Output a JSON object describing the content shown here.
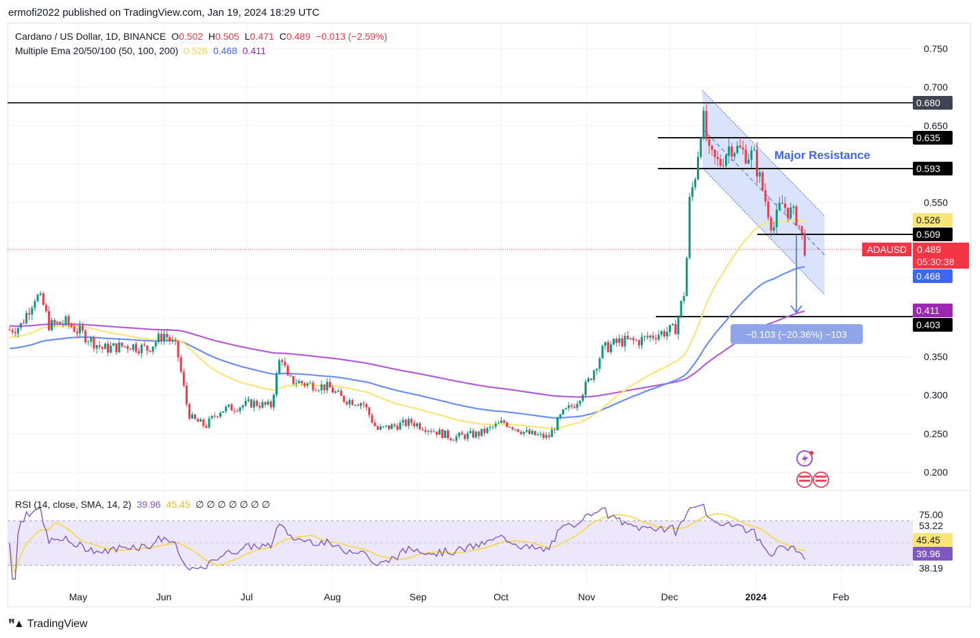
{
  "header": {
    "publisher": "ermofi2022 published on TradingView.com, Jan 19, 2024 18:29 UTC"
  },
  "legend": {
    "symbol": "Cardano / US Dollar, 1D, BINANCE",
    "o_label": "O",
    "o_value": "0.502",
    "h_label": "H",
    "h_value": "0.505",
    "l_label": "L",
    "l_value": "0.471",
    "c_label": "C",
    "c_value": "0.489",
    "change": "−0.013 (−2.59%)",
    "ema_title": "Multiple Ema 20/50/100 (50, 100, 200)",
    "ema_values": [
      "0.526",
      "0.468",
      "0.411"
    ],
    "rsi_title": "RSI (14, close, SMA, 14, 2)",
    "rsi_values": [
      "39.96",
      "45.45"
    ],
    "rsi_extra": "∅ ∅ ∅ ∅ ∅ ∅ ∅"
  },
  "annotations": {
    "major_resistance": "Major Resistance",
    "measure": "−0.103 (−20.36%) −103"
  },
  "price_tags": {
    "t680": "0.680",
    "t635": "0.635",
    "t593": "0.593",
    "t526": "0.526",
    "t509": "0.509",
    "symbol": "ADAUSD",
    "t489": "0.489",
    "countdown": "05:30:38",
    "t468": "0.468",
    "t411": "0.411",
    "t403": "0.403"
  },
  "rsi_tags": {
    "r7500": "75.00",
    "r5322": "53.22",
    "r4545": "45.45",
    "r3996": "39.96",
    "r3819": "38.19"
  },
  "footer": {
    "brand": "TradingView"
  },
  "colors": {
    "bull": "#089981",
    "bear": "#f23645",
    "ema50": "#fbe577",
    "ema100": "#6b8ff0",
    "ema200": "#b45bd6",
    "rsi": "#7e57c2",
    "rsi_sma": "#f5d73d",
    "channel": "#3d67f0"
  },
  "chart_data": {
    "type": "candlestick",
    "y_axis_ticks": [
      "0.750",
      "0.700",
      "0.650",
      "0.550",
      "0.350",
      "0.300",
      "0.250",
      "0.200"
    ],
    "x_axis_ticks": [
      "May",
      "Jun",
      "Jul",
      "Aug",
      "Sep",
      "Oct",
      "Nov",
      "Dec",
      "2024",
      "Feb"
    ],
    "ylim": [
      0.17,
      0.77
    ],
    "horizontal_levels": [
      0.68,
      0.635,
      0.593,
      0.509,
      0.403
    ],
    "current_price": 0.489,
    "key_points": [
      {
        "date": "2023-04-15",
        "close": 0.42
      },
      {
        "date": "2023-05-01",
        "close": 0.38
      },
      {
        "date": "2023-06-10",
        "close": 0.27
      },
      {
        "date": "2023-07-13",
        "close": 0.36
      },
      {
        "date": "2023-08-01",
        "close": 0.3
      },
      {
        "date": "2023-09-15",
        "close": 0.25
      },
      {
        "date": "2023-10-19",
        "close": 0.245
      },
      {
        "date": "2023-11-15",
        "close": 0.37
      },
      {
        "date": "2023-12-11",
        "close": 0.66
      },
      {
        "date": "2024-01-10",
        "close": 0.58
      },
      {
        "date": "2024-01-19",
        "close": 0.489
      }
    ],
    "rsi_axis_ticks": [
      "75.00",
      "53.22",
      "45.45",
      "39.96",
      "38.19"
    ]
  }
}
